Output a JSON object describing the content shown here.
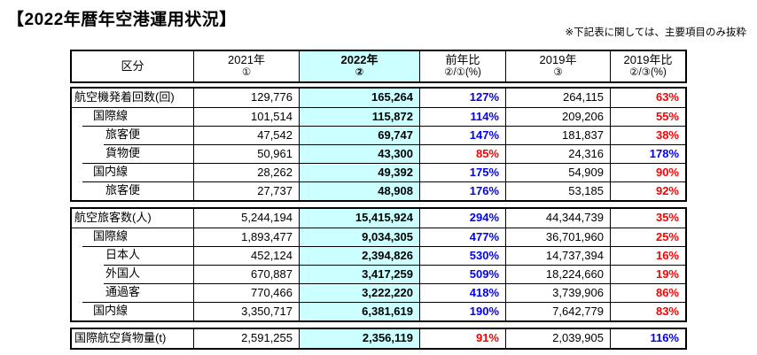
{
  "title": "【2022年暦年空港運用状況】",
  "note": "※下記表に関しては、主要項目のみ抜粋",
  "colors": {
    "highlight_2022": "#CCFFFF",
    "percent_up": "#0000FF",
    "percent_down": "#FF0000"
  },
  "table": {
    "headers": [
      {
        "line1": "区分",
        "line2": ""
      },
      {
        "line1": "2021年",
        "line2": "①"
      },
      {
        "line1": "2022年",
        "line2": "②"
      },
      {
        "line1": "前年比",
        "line2": "②/①(%)"
      },
      {
        "line1": "2019年",
        "line2": "③"
      },
      {
        "line1": "2019年比",
        "line2": "②/③(%)"
      }
    ],
    "sections": [
      {
        "rows": [
          {
            "label": "航空機発着回数(回)",
            "y2021": "129,776",
            "y2022": "165,264",
            "yoy": "127%",
            "yoy_color": "#0000FF",
            "y2019": "264,115",
            "vs2019": "63%",
            "vs2019_color": "#FF0000"
          },
          {
            "label": "国際線",
            "y2021": "101,514",
            "y2022": "115,872",
            "yoy": "114%",
            "yoy_color": "#0000FF",
            "y2019": "209,206",
            "vs2019": "55%",
            "vs2019_color": "#FF0000"
          },
          {
            "label": "旅客便",
            "y2021": "47,542",
            "y2022": "69,747",
            "yoy": "147%",
            "yoy_color": "#0000FF",
            "y2019": "181,837",
            "vs2019": "38%",
            "vs2019_color": "#FF0000"
          },
          {
            "label": "貨物便",
            "y2021": "50,961",
            "y2022": "43,300",
            "yoy": "85%",
            "yoy_color": "#FF0000",
            "y2019": "24,316",
            "vs2019": "178%",
            "vs2019_color": "#0000FF"
          },
          {
            "label": "国内線",
            "y2021": "28,262",
            "y2022": "49,392",
            "yoy": "175%",
            "yoy_color": "#0000FF",
            "y2019": "54,909",
            "vs2019": "90%",
            "vs2019_color": "#FF0000"
          },
          {
            "label": "旅客便",
            "y2021": "27,737",
            "y2022": "48,908",
            "yoy": "176%",
            "yoy_color": "#0000FF",
            "y2019": "53,185",
            "vs2019": "92%",
            "vs2019_color": "#FF0000"
          }
        ]
      },
      {
        "rows": [
          {
            "label": "航空旅客数(人)",
            "y2021": "5,244,194",
            "y2022": "15,415,924",
            "yoy": "294%",
            "yoy_color": "#0000FF",
            "y2019": "44,344,739",
            "vs2019": "35%",
            "vs2019_color": "#FF0000"
          },
          {
            "label": "国際線",
            "y2021": "1,893,477",
            "y2022": "9,034,305",
            "yoy": "477%",
            "yoy_color": "#0000FF",
            "y2019": "36,701,960",
            "vs2019": "25%",
            "vs2019_color": "#FF0000"
          },
          {
            "label": "日本人",
            "y2021": "452,124",
            "y2022": "2,394,826",
            "yoy": "530%",
            "yoy_color": "#0000FF",
            "y2019": "14,737,394",
            "vs2019": "16%",
            "vs2019_color": "#FF0000"
          },
          {
            "label": "外国人",
            "y2021": "670,887",
            "y2022": "3,417,259",
            "yoy": "509%",
            "yoy_color": "#0000FF",
            "y2019": "18,224,660",
            "vs2019": "19%",
            "vs2019_color": "#FF0000"
          },
          {
            "label": "通過客",
            "y2021": "770,466",
            "y2022": "3,222,220",
            "yoy": "418%",
            "yoy_color": "#0000FF",
            "y2019": "3,739,906",
            "vs2019": "86%",
            "vs2019_color": "#FF0000"
          },
          {
            "label": "国内線",
            "y2021": "3,350,717",
            "y2022": "6,381,619",
            "yoy": "190%",
            "yoy_color": "#0000FF",
            "y2019": "7,642,779",
            "vs2019": "83%",
            "vs2019_color": "#FF0000"
          }
        ]
      },
      {
        "rows": [
          {
            "label": "国際航空貨物量(t)",
            "y2021": "2,591,255",
            "y2022": "2,356,119",
            "yoy": "91%",
            "yoy_color": "#FF0000",
            "y2019": "2,039,905",
            "vs2019": "116%",
            "vs2019_color": "#0000FF"
          }
        ]
      }
    ]
  }
}
